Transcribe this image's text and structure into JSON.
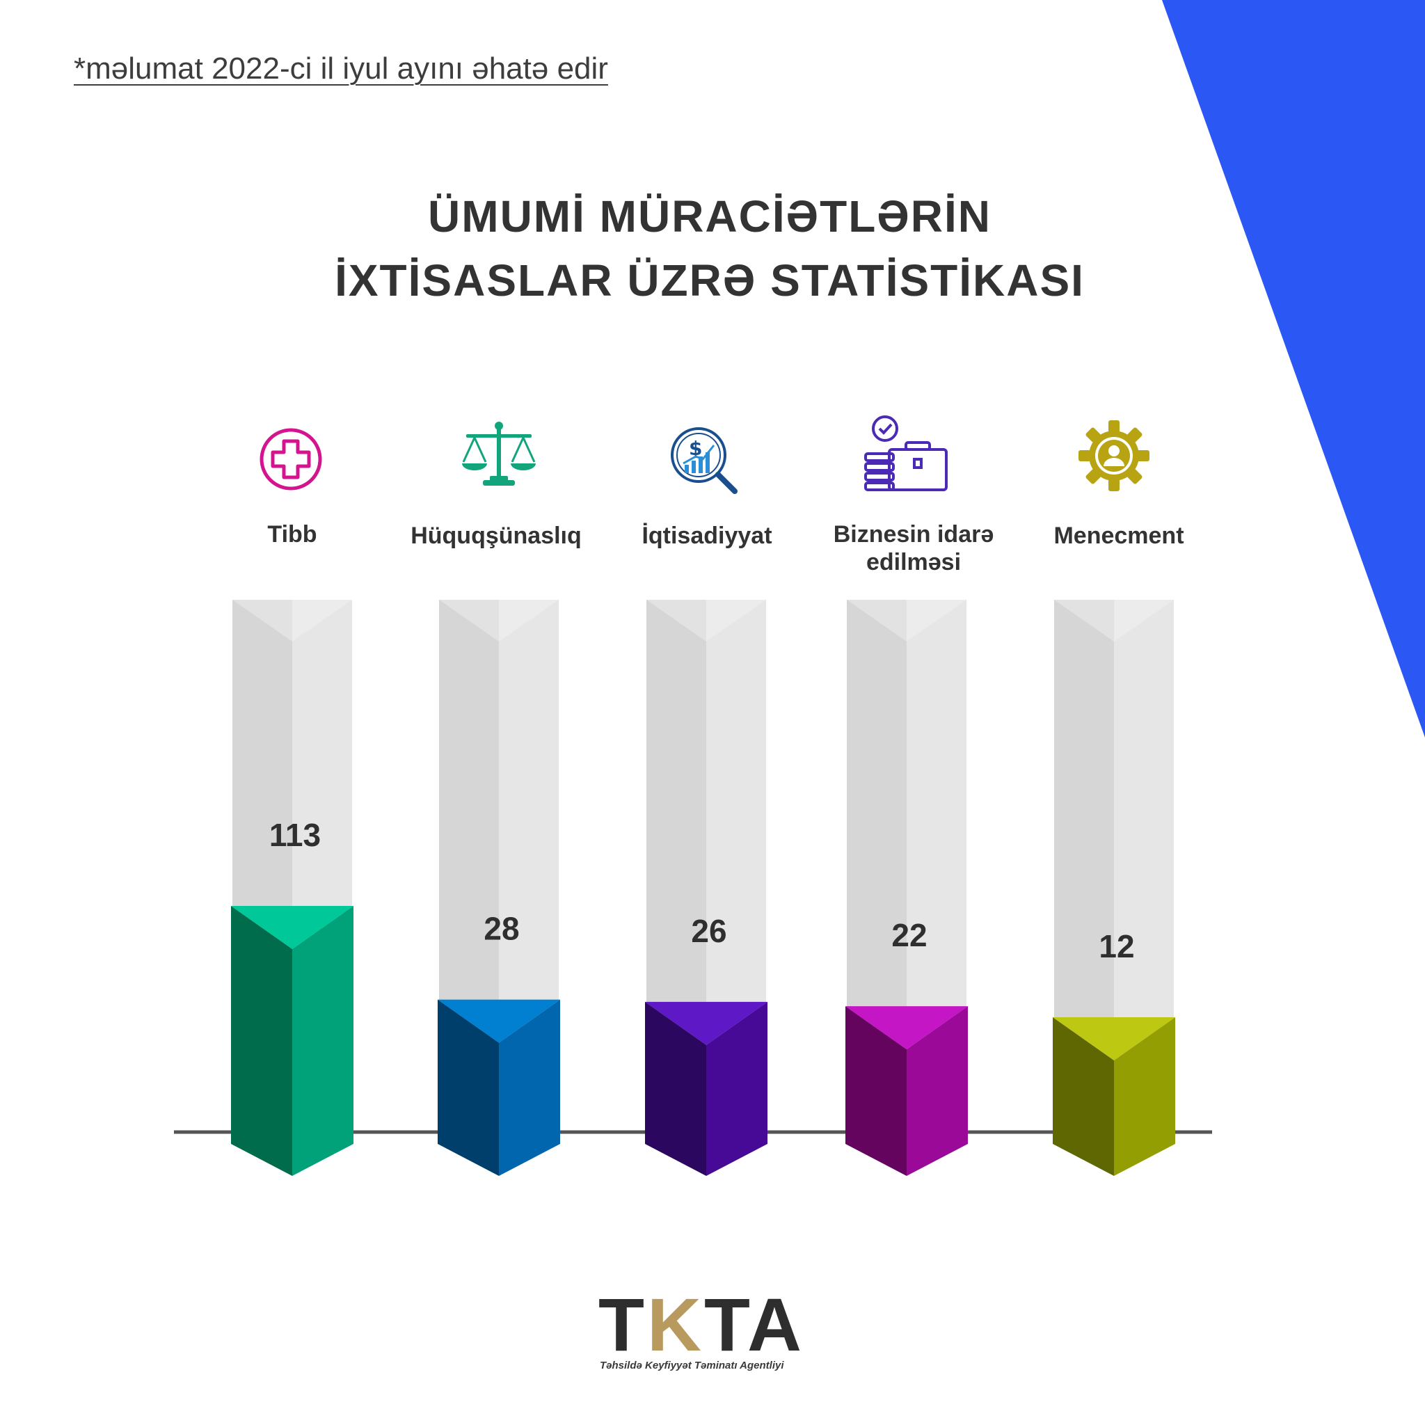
{
  "footnote": "*məlumat 2022-ci il iyul ayını əhatə edir",
  "title_line1": "ÜMUMİ MÜRACİƏTLƏRİN",
  "title_line2": "İXTİSASLAR ÜZRƏ STATİSTİKASI",
  "accent_color": "#2b57f5",
  "chart_data": {
    "type": "bar",
    "categories": [
      "Tibb",
      "Hüquqşünaslıq",
      "İqtisadiyyat",
      "Biznesin idarə edilməsi",
      "Menecment"
    ],
    "values": [
      113,
      28,
      26,
      22,
      12
    ],
    "value_labels": [
      "113",
      "28",
      "26",
      "22",
      "12"
    ],
    "icons": [
      "medical-cross-icon",
      "scales-of-justice-icon",
      "finance-magnifier-icon",
      "briefcase-clock-icon",
      "gear-person-icon"
    ],
    "colors": [
      {
        "left": "#016c4c",
        "right": "#01a27a",
        "top": "#00c899"
      },
      {
        "left": "#003f6c",
        "right": "#0166ad",
        "top": "#0180d2"
      },
      {
        "left": "#2c075f",
        "right": "#470a96",
        "top": "#5e18c6"
      },
      {
        "left": "#64045f",
        "right": "#9b0998",
        "top": "#c416c4"
      },
      {
        "left": "#5f6702",
        "right": "#939e02",
        "top": "#bdc812"
      }
    ],
    "title": "ÜMUMİ MÜRACİƏTLƏRİN İXTİSASLAR ÜZRƏ STATİSTİKASI",
    "xlabel": "",
    "ylabel": ""
  },
  "logo": {
    "letters": [
      "T",
      "K",
      "T",
      "A"
    ],
    "subtitle": "Təhsildə Keyfiyyət Təminatı Agentliyi"
  }
}
